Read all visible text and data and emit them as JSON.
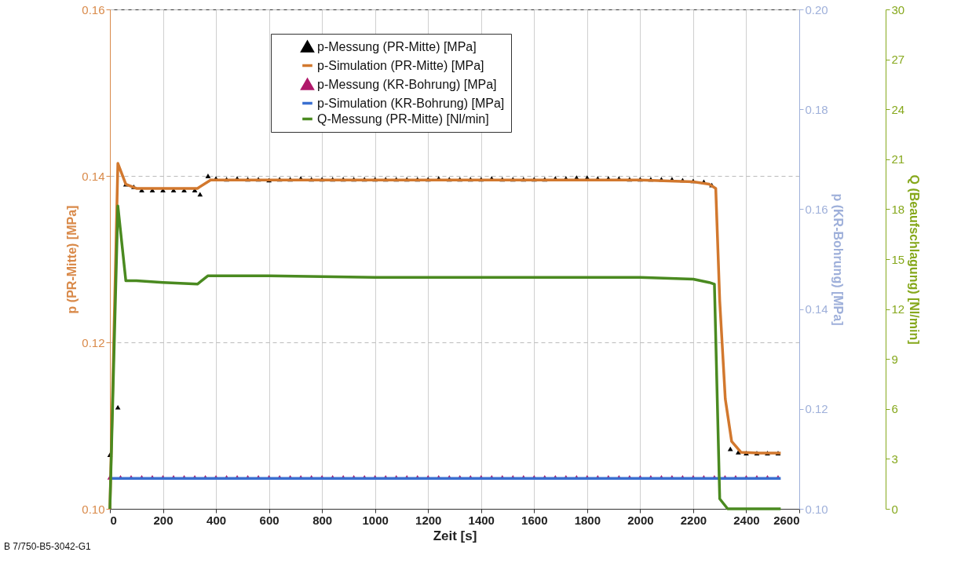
{
  "chart_data": {
    "type": "line",
    "xlabel": "Zeit [s]",
    "ylabel": "p (PR-Mitte) [MPa]",
    "y2label": "p (KR-Bohrung) [MPa]",
    "y3label": "Q (Beaufschlagung) [Nl/min]",
    "xlim": [
      0,
      2600
    ],
    "xticks": [
      0,
      200,
      400,
      600,
      800,
      1000,
      1200,
      1400,
      1600,
      1800,
      2000,
      2200,
      2400,
      2600
    ],
    "ylim": [
      0.1,
      0.16
    ],
    "yticks": [
      {
        "value": 0.1,
        "label": "0.10"
      },
      0.12,
      0.14,
      0.16
    ],
    "y2lim": [
      0.1,
      0.2
    ],
    "y2ticks": [
      {
        "value": 0.1,
        "label": "0.10"
      },
      0.12,
      0.14,
      0.16,
      0.18,
      {
        "value": 0.2,
        "label": "0.20"
      }
    ],
    "y3lim": [
      0,
      30
    ],
    "y3ticks": [
      0,
      3,
      6,
      9,
      12,
      15,
      18,
      21,
      24,
      27,
      30
    ],
    "grid": true,
    "legend": "top",
    "annotations": [
      "B 7/750-B5-3042-G1"
    ],
    "series": [
      {
        "name": "p-Messung (PR-Mitte) [MPa]",
        "type": "scatter",
        "marker": "triangle",
        "color": "#000000",
        "x": [
          0,
          30,
          60,
          90,
          120,
          160,
          200,
          240,
          280,
          320,
          340,
          370,
          400,
          440,
          480,
          520,
          560,
          600,
          640,
          680,
          720,
          760,
          800,
          840,
          880,
          920,
          960,
          1000,
          1040,
          1080,
          1120,
          1160,
          1200,
          1240,
          1280,
          1320,
          1360,
          1400,
          1440,
          1480,
          1520,
          1560,
          1600,
          1640,
          1680,
          1720,
          1760,
          1800,
          1840,
          1880,
          1920,
          1960,
          2000,
          2040,
          2080,
          2120,
          2160,
          2200,
          2240,
          2270,
          2340,
          2370,
          2400,
          2440,
          2480,
          2520
        ],
        "values": [
          0.1065,
          0.1122,
          0.139,
          0.1387,
          0.1383,
          0.1383,
          0.1383,
          0.1383,
          0.1383,
          0.1383,
          0.1378,
          0.14,
          0.1397,
          0.1396,
          0.1397,
          0.1396,
          0.1396,
          0.1395,
          0.1396,
          0.1396,
          0.1397,
          0.1396,
          0.1396,
          0.1396,
          0.1396,
          0.1396,
          0.1396,
          0.1396,
          0.1396,
          0.1396,
          0.1396,
          0.1396,
          0.1396,
          0.1397,
          0.1396,
          0.1396,
          0.1396,
          0.1396,
          0.1397,
          0.1396,
          0.1396,
          0.1396,
          0.1396,
          0.1396,
          0.1397,
          0.1397,
          0.1398,
          0.1398,
          0.1397,
          0.1397,
          0.1397,
          0.1396,
          0.1396,
          0.1396,
          0.1396,
          0.1396,
          0.1395,
          0.1394,
          0.1393,
          0.1389,
          0.1072,
          0.1068,
          0.1067,
          0.1067,
          0.1067,
          0.1067
        ]
      },
      {
        "name": "p-Simulation (PR-Mitte) [MPa]",
        "color": "#d2782e",
        "x": [
          0,
          30,
          60,
          100,
          200,
          330,
          380,
          500,
          1000,
          1500,
          2000,
          2200,
          2260,
          2285,
          2300,
          2321,
          2345,
          2380,
          2450,
          2530
        ],
        "values": [
          0.1,
          0.1415,
          0.139,
          0.1385,
          0.1385,
          0.1385,
          0.1395,
          0.1395,
          0.1395,
          0.1395,
          0.1395,
          0.1393,
          0.139,
          0.1385,
          0.125,
          0.1132,
          0.1081,
          0.1068,
          0.1067,
          0.1067
        ]
      },
      {
        "name": "p-Messung (KR-Bohrung) [MPa]",
        "type": "scatter",
        "marker": "triangle",
        "axis": "y2",
        "color": "#b0186a",
        "x": [
          0,
          40,
          80,
          120,
          160,
          200,
          240,
          280,
          320,
          360,
          400,
          440,
          480,
          520,
          560,
          600,
          640,
          680,
          720,
          760,
          800,
          840,
          880,
          920,
          960,
          1000,
          1040,
          1080,
          1120,
          1160,
          1200,
          1240,
          1280,
          1320,
          1360,
          1400,
          1440,
          1480,
          1520,
          1560,
          1600,
          1640,
          1680,
          1720,
          1760,
          1800,
          1840,
          1880,
          1920,
          1960,
          2000,
          2040,
          2080,
          2120,
          2160,
          2200,
          2240,
          2280,
          2320,
          2360,
          2400,
          2440,
          2480,
          2520
        ],
        "values": [
          0.1063,
          0.1063,
          0.1063,
          0.1063,
          0.1063,
          0.1063,
          0.1063,
          0.1063,
          0.1063,
          0.1063,
          0.1063,
          0.1063,
          0.1063,
          0.1063,
          0.1063,
          0.1063,
          0.1063,
          0.1063,
          0.1063,
          0.1063,
          0.1063,
          0.1063,
          0.1063,
          0.1063,
          0.1063,
          0.1063,
          0.1063,
          0.1063,
          0.1063,
          0.1063,
          0.1063,
          0.1063,
          0.1063,
          0.1063,
          0.1063,
          0.1063,
          0.1063,
          0.1063,
          0.1063,
          0.1063,
          0.1063,
          0.1063,
          0.1063,
          0.1063,
          0.1063,
          0.1063,
          0.1063,
          0.1063,
          0.1063,
          0.1063,
          0.1063,
          0.1063,
          0.1063,
          0.1063,
          0.1063,
          0.1063,
          0.1063,
          0.1063,
          0.1063,
          0.1063,
          0.1063,
          0.1063,
          0.1063,
          0.1063
        ]
      },
      {
        "name": "p-Simulation (KR-Bohrung) [MPa]",
        "axis": "y2",
        "color": "#3a6fd0",
        "x": [
          0,
          500,
          1000,
          1500,
          2000,
          2530
        ],
        "values": [
          0.1061,
          0.1061,
          0.1061,
          0.1061,
          0.1061,
          0.1061
        ]
      },
      {
        "name": "Q-Messung (PR-Mitte) [Nl/min]",
        "axis": "y3",
        "color": "#4a8a20",
        "x": [
          0,
          30,
          60,
          100,
          200,
          330,
          370,
          400,
          600,
          1000,
          1500,
          2000,
          2200,
          2260,
          2280,
          2300,
          2330,
          2530
        ],
        "values": [
          0,
          18.2,
          13.7,
          13.7,
          13.6,
          13.5,
          14,
          14,
          14,
          13.9,
          13.9,
          13.9,
          13.8,
          13.6,
          13.5,
          0.6,
          0,
          0
        ]
      }
    ]
  }
}
